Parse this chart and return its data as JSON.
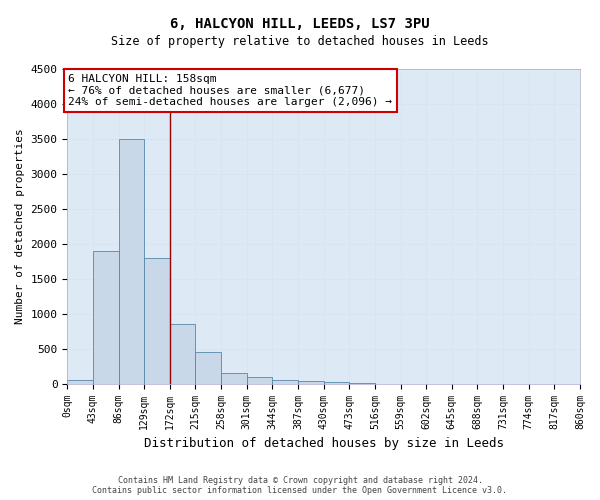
{
  "title1": "6, HALCYON HILL, LEEDS, LS7 3PU",
  "title2": "Size of property relative to detached houses in Leeds",
  "xlabel": "Distribution of detached houses by size in Leeds",
  "ylabel": "Number of detached properties",
  "bar_edges": [
    0,
    43,
    86,
    129,
    172,
    215,
    258,
    301,
    344,
    387,
    430,
    473,
    516,
    559,
    602,
    645,
    688,
    731,
    774,
    817,
    860
  ],
  "bar_heights": [
    50,
    1900,
    3500,
    1800,
    850,
    450,
    160,
    90,
    55,
    40,
    30,
    5,
    0,
    0,
    0,
    0,
    0,
    0,
    0,
    0
  ],
  "bar_color": "#c8d8e8",
  "bar_edgecolor": "#5588aa",
  "red_line_x": 172,
  "ylim": [
    0,
    4500
  ],
  "annotation_title": "6 HALCYON HILL: 158sqm",
  "annotation_line1": "← 76% of detached houses are smaller (6,677)",
  "annotation_line2": "24% of semi-detached houses are larger (2,096) →",
  "annotation_box_color": "#ffffff",
  "annotation_box_edgecolor": "#cc0000",
  "footnote1": "Contains HM Land Registry data © Crown copyright and database right 2024.",
  "footnote2": "Contains public sector information licensed under the Open Government Licence v3.0.",
  "tick_labels": [
    "0sqm",
    "43sqm",
    "86sqm",
    "129sqm",
    "172sqm",
    "215sqm",
    "258sqm",
    "301sqm",
    "344sqm",
    "387sqm",
    "430sqm",
    "473sqm",
    "516sqm",
    "559sqm",
    "602sqm",
    "645sqm",
    "688sqm",
    "731sqm",
    "774sqm",
    "817sqm",
    "860sqm"
  ],
  "yticks": [
    0,
    500,
    1000,
    1500,
    2000,
    2500,
    3000,
    3500,
    4000,
    4500
  ],
  "grid_color": "#d8e4f0",
  "bg_color": "#ddeaf6"
}
